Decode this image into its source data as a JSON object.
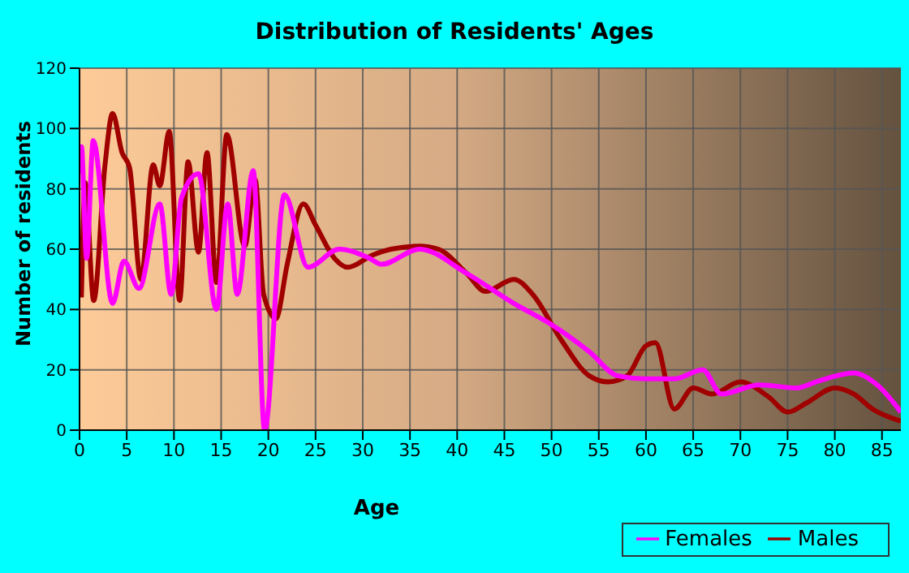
{
  "chart_data": {
    "type": "line",
    "title": "Distribution of Residents' Ages",
    "xlabel": "Age",
    "ylabel": "Number of residents",
    "xlim": [
      0,
      87
    ],
    "xticks": [
      0,
      5,
      10,
      15,
      20,
      25,
      30,
      35,
      40,
      45,
      50,
      55,
      60,
      65,
      70,
      75,
      80,
      85
    ],
    "ylim": [
      0,
      120
    ],
    "yticks": [
      0,
      20,
      40,
      60,
      80,
      100,
      120
    ],
    "grid": true,
    "legend": "bottom right",
    "marker": "none",
    "series": [
      {
        "name": "Males",
        "color": "#a00000",
        "x": [
          0.2,
          0.6,
          1.5,
          2.7,
          3.5,
          4.5,
          5.3,
          6.5,
          7.8,
          8.5,
          9.5,
          10.6,
          11.5,
          12.6,
          13.5,
          14.5,
          15.6,
          17.5,
          18.6,
          19.5,
          20.8,
          22,
          23.7,
          25,
          27,
          28.4,
          31,
          33,
          36,
          38,
          41,
          43,
          46,
          48,
          51,
          54,
          56,
          58,
          60,
          61,
          63,
          65,
          67,
          70,
          73,
          75,
          77,
          80,
          82,
          84,
          87
        ],
        "values": [
          44,
          82,
          43,
          88,
          105,
          92,
          87,
          50,
          88,
          81,
          99,
          43,
          89,
          59,
          92,
          49,
          98,
          61,
          83,
          45,
          37,
          55,
          75,
          68,
          57,
          54,
          58,
          60,
          61,
          60,
          52,
          46,
          50,
          45,
          30,
          18,
          16,
          18,
          28,
          29,
          7,
          14,
          12,
          16,
          11,
          6,
          9,
          14,
          12,
          7,
          3
        ]
      },
      {
        "name": "Females",
        "color": "#ff00ff",
        "x": [
          0,
          0.2,
          0.75,
          1.45,
          3.5,
          4.7,
          6.3,
          8.5,
          9.7,
          10.8,
          12.6,
          14.5,
          15.7,
          16.7,
          18.4,
          19.6,
          21.7,
          24.2,
          27.5,
          30.7,
          32,
          36,
          41,
          46,
          50,
          54,
          57,
          60,
          63,
          66,
          68,
          72,
          76,
          78,
          82,
          84.5,
          87
        ],
        "values": [
          85,
          94,
          57,
          96,
          42,
          56,
          47,
          75,
          45,
          77,
          85,
          40,
          75,
          45,
          86,
          0,
          78,
          54,
          60,
          57,
          55,
          60,
          52,
          42,
          35,
          26,
          18,
          17,
          17,
          20,
          12,
          15,
          14,
          16,
          19,
          15,
          6
        ]
      }
    ]
  }
}
